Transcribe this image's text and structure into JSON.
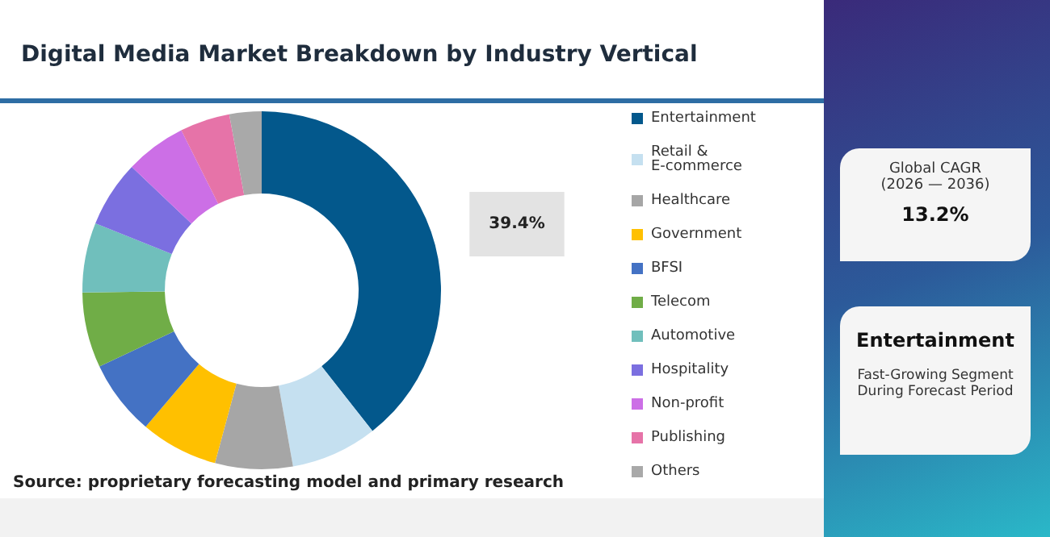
{
  "chart_data": {
    "type": "donut",
    "title": "Digital Media Market Breakdown by Industry Vertical",
    "categories": [
      "Entertainment",
      "Retail & E-commerce",
      "Healthcare",
      "Government",
      "BFSI",
      "Telecom",
      "Automotive",
      "Hospitality",
      "Non-profit",
      "Publishing",
      "Others"
    ],
    "values": [
      39.4,
      7.8,
      7,
      7,
      6.8,
      6.8,
      6.3,
      6,
      5.5,
      4.5,
      2.9
    ],
    "colors": [
      "#03588c",
      "#c5e0f0",
      "#a6a6a6",
      "#ffc000",
      "#4472c4",
      "#70ad47",
      "#70bfbc",
      "#7b6fe0",
      "#cc6fe6",
      "#e673a8",
      "#a9a9a9"
    ],
    "value_labels": [
      "39.4%",
      null,
      null,
      null,
      null,
      null,
      null,
      null,
      null,
      null,
      null
    ],
    "legend": "right",
    "annotations": [
      "Source: proprietary forecasting model and primary research",
      "Global CAGR",
      "(2026 — 2036)",
      "13.2%",
      "Entertainment",
      "Fast-Growing Segment During Forecast Period"
    ]
  }
}
